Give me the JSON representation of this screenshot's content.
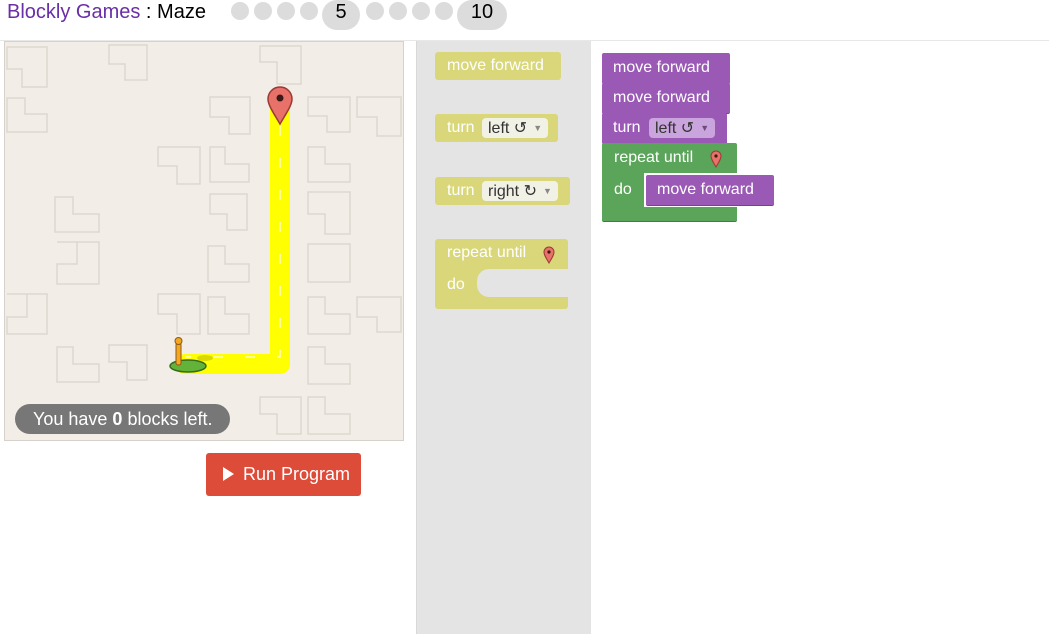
{
  "header": {
    "app_name": "Blockly Games",
    "separator": " : ",
    "game_name": "Maze",
    "levels": [
      "1",
      "2",
      "3",
      "4",
      "5",
      "6",
      "7",
      "8",
      "9",
      "10"
    ],
    "current_level": "5",
    "max_level": "10"
  },
  "maze": {
    "blocks_left_prefix": "You have ",
    "blocks_left_count": "0",
    "blocks_left_suffix": " blocks left."
  },
  "run_button": {
    "label": "Run Program"
  },
  "toolbox": {
    "move_forward": "move forward",
    "turn_label": "turn",
    "turn_left": "left ↺",
    "turn_right": "right ↻",
    "repeat_label": "repeat until",
    "do_label": "do"
  },
  "workspace": {
    "blocks": [
      {
        "type": "move",
        "label": "move forward"
      },
      {
        "type": "move",
        "label": "move forward"
      },
      {
        "type": "turn",
        "label": "turn",
        "dir": "left ↺"
      },
      {
        "type": "repeat",
        "label": "repeat until",
        "do": "do",
        "inner": "move forward"
      }
    ]
  },
  "colors": {
    "motion": "#9b59b6",
    "loop": "#5ba55a",
    "run": "#dd4b39",
    "path": "#ffff00"
  }
}
